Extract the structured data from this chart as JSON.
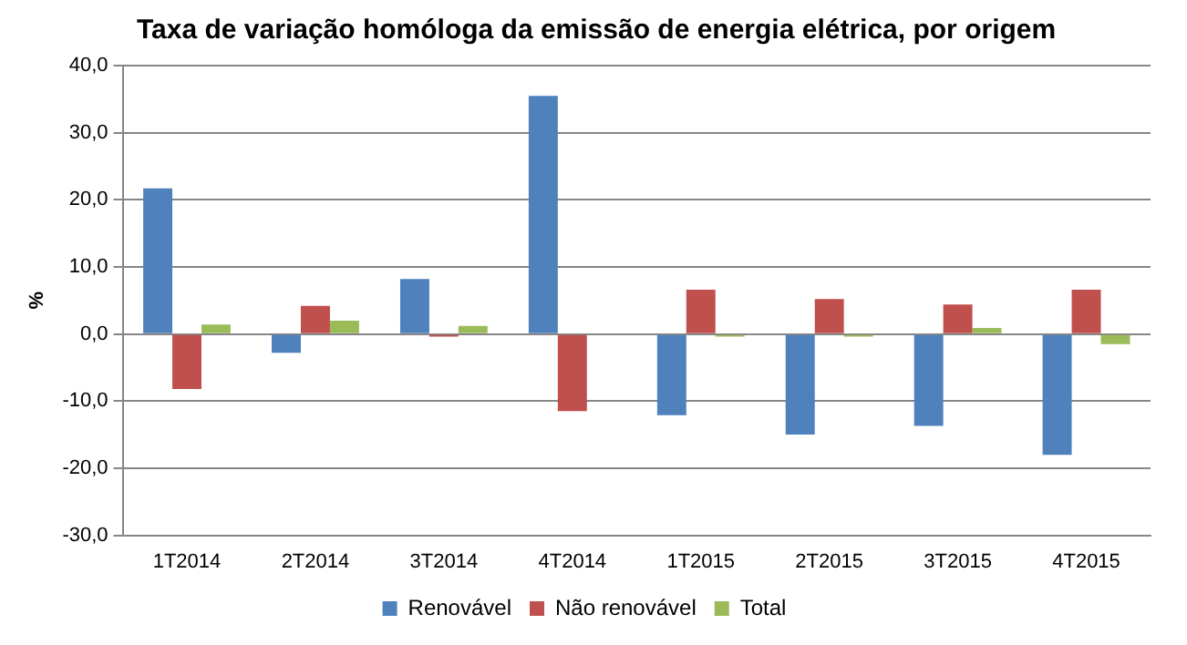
{
  "chart_data": {
    "type": "bar",
    "title": "Taxa de variação homóloga da emissão de energia elétrica, por origem",
    "ylabel": "%",
    "categories": [
      "1T2014",
      "2T2014",
      "3T2014",
      "4T2014",
      "1T2015",
      "2T2015",
      "3T2015",
      "4T2015"
    ],
    "series": [
      {
        "name": "Renovável",
        "color": "#4f81bd",
        "values": [
          21.7,
          -2.8,
          8.2,
          35.5,
          -12.1,
          -15.0,
          -13.7,
          -18.0
        ]
      },
      {
        "name": "Não renovável",
        "color": "#c0504d",
        "values": [
          -8.2,
          4.2,
          -0.4,
          -11.5,
          6.6,
          5.2,
          4.4,
          6.6
        ]
      },
      {
        "name": "Total",
        "color": "#9bbb59",
        "values": [
          1.4,
          2.0,
          1.2,
          0,
          -0.4,
          -0.4,
          0.9,
          -1.5
        ]
      }
    ],
    "ylim": [
      -30,
      40
    ],
    "yticks": [
      {
        "value": -30,
        "label": "-30,0"
      },
      {
        "value": -20,
        "label": "-20,0"
      },
      {
        "value": -10,
        "label": "-10,0"
      },
      {
        "value": 0,
        "label": "0,0"
      },
      {
        "value": 10,
        "label": "10,0"
      },
      {
        "value": 20,
        "label": "20,0"
      },
      {
        "value": 30,
        "label": "30,0"
      },
      {
        "value": 40,
        "label": "40,0"
      }
    ],
    "grid": "y",
    "legend": "bottom"
  }
}
